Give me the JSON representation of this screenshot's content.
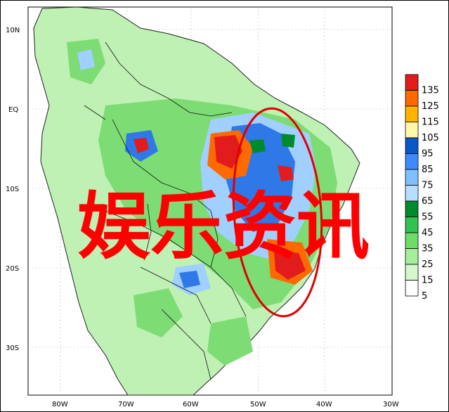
{
  "map": {
    "lat_labels": [
      "10N",
      "EQ",
      "10S",
      "20S",
      "30S"
    ],
    "lon_labels": [
      "80W",
      "70W",
      "60W",
      "50W",
      "40W",
      "30W"
    ]
  },
  "legend": {
    "values": [
      "135",
      "125",
      "115",
      "105",
      "95",
      "85",
      "75",
      "65",
      "55",
      "45",
      "35",
      "25",
      "15",
      "5"
    ],
    "colors": [
      "#e21c1c",
      "#ff6a00",
      "#ffb400",
      "#fff7a8",
      "#0a57c8",
      "#3c8cff",
      "#7fc1ff",
      "#b9ddff",
      "#008a2e",
      "#33c24f",
      "#6fdc6a",
      "#a6ee9b",
      "#d4f7cc",
      "#ffffff"
    ]
  },
  "overlay": {
    "text": "娱乐资讯",
    "color": "#ff0000",
    "ellipse_color": "#e00000"
  }
}
